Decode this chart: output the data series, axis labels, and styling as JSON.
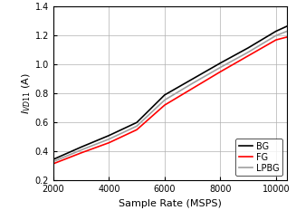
{
  "title": "",
  "xlabel": "Sample Rate (MSPS)",
  "ylabel": "I_VD11 (A)",
  "xlim": [
    2000,
    10400
  ],
  "ylim": [
    0.2,
    1.4
  ],
  "xticks": [
    2000,
    4000,
    6000,
    8000,
    10000
  ],
  "yticks": [
    0.2,
    0.4,
    0.6,
    0.8,
    1.0,
    1.2,
    1.4
  ],
  "series": {
    "BG": {
      "x": [
        2000,
        3000,
        4000,
        5000,
        6000,
        7000,
        8000,
        9000,
        10000,
        10400
      ],
      "y": [
        0.345,
        0.43,
        0.51,
        0.6,
        0.79,
        0.9,
        1.01,
        1.115,
        1.23,
        1.265
      ],
      "color": "#000000",
      "linewidth": 1.2
    },
    "FG": {
      "x": [
        2000,
        3000,
        4000,
        5000,
        6000,
        7000,
        8000,
        9000,
        10000,
        10400
      ],
      "y": [
        0.315,
        0.39,
        0.46,
        0.55,
        0.72,
        0.835,
        0.95,
        1.06,
        1.17,
        1.19
      ],
      "color": "#ff0000",
      "linewidth": 1.2
    },
    "LPBG": {
      "x": [
        2000,
        3000,
        4000,
        5000,
        6000,
        7000,
        8000,
        9000,
        10000,
        10400
      ],
      "y": [
        0.33,
        0.41,
        0.485,
        0.575,
        0.755,
        0.87,
        0.98,
        1.085,
        1.2,
        1.23
      ],
      "color": "#a0a0a0",
      "linewidth": 1.2
    }
  },
  "legend_loc": "lower right",
  "grid": true,
  "background_color": "#ffffff",
  "tick_fontsize": 7,
  "label_fontsize": 8,
  "legend_fontsize": 7
}
